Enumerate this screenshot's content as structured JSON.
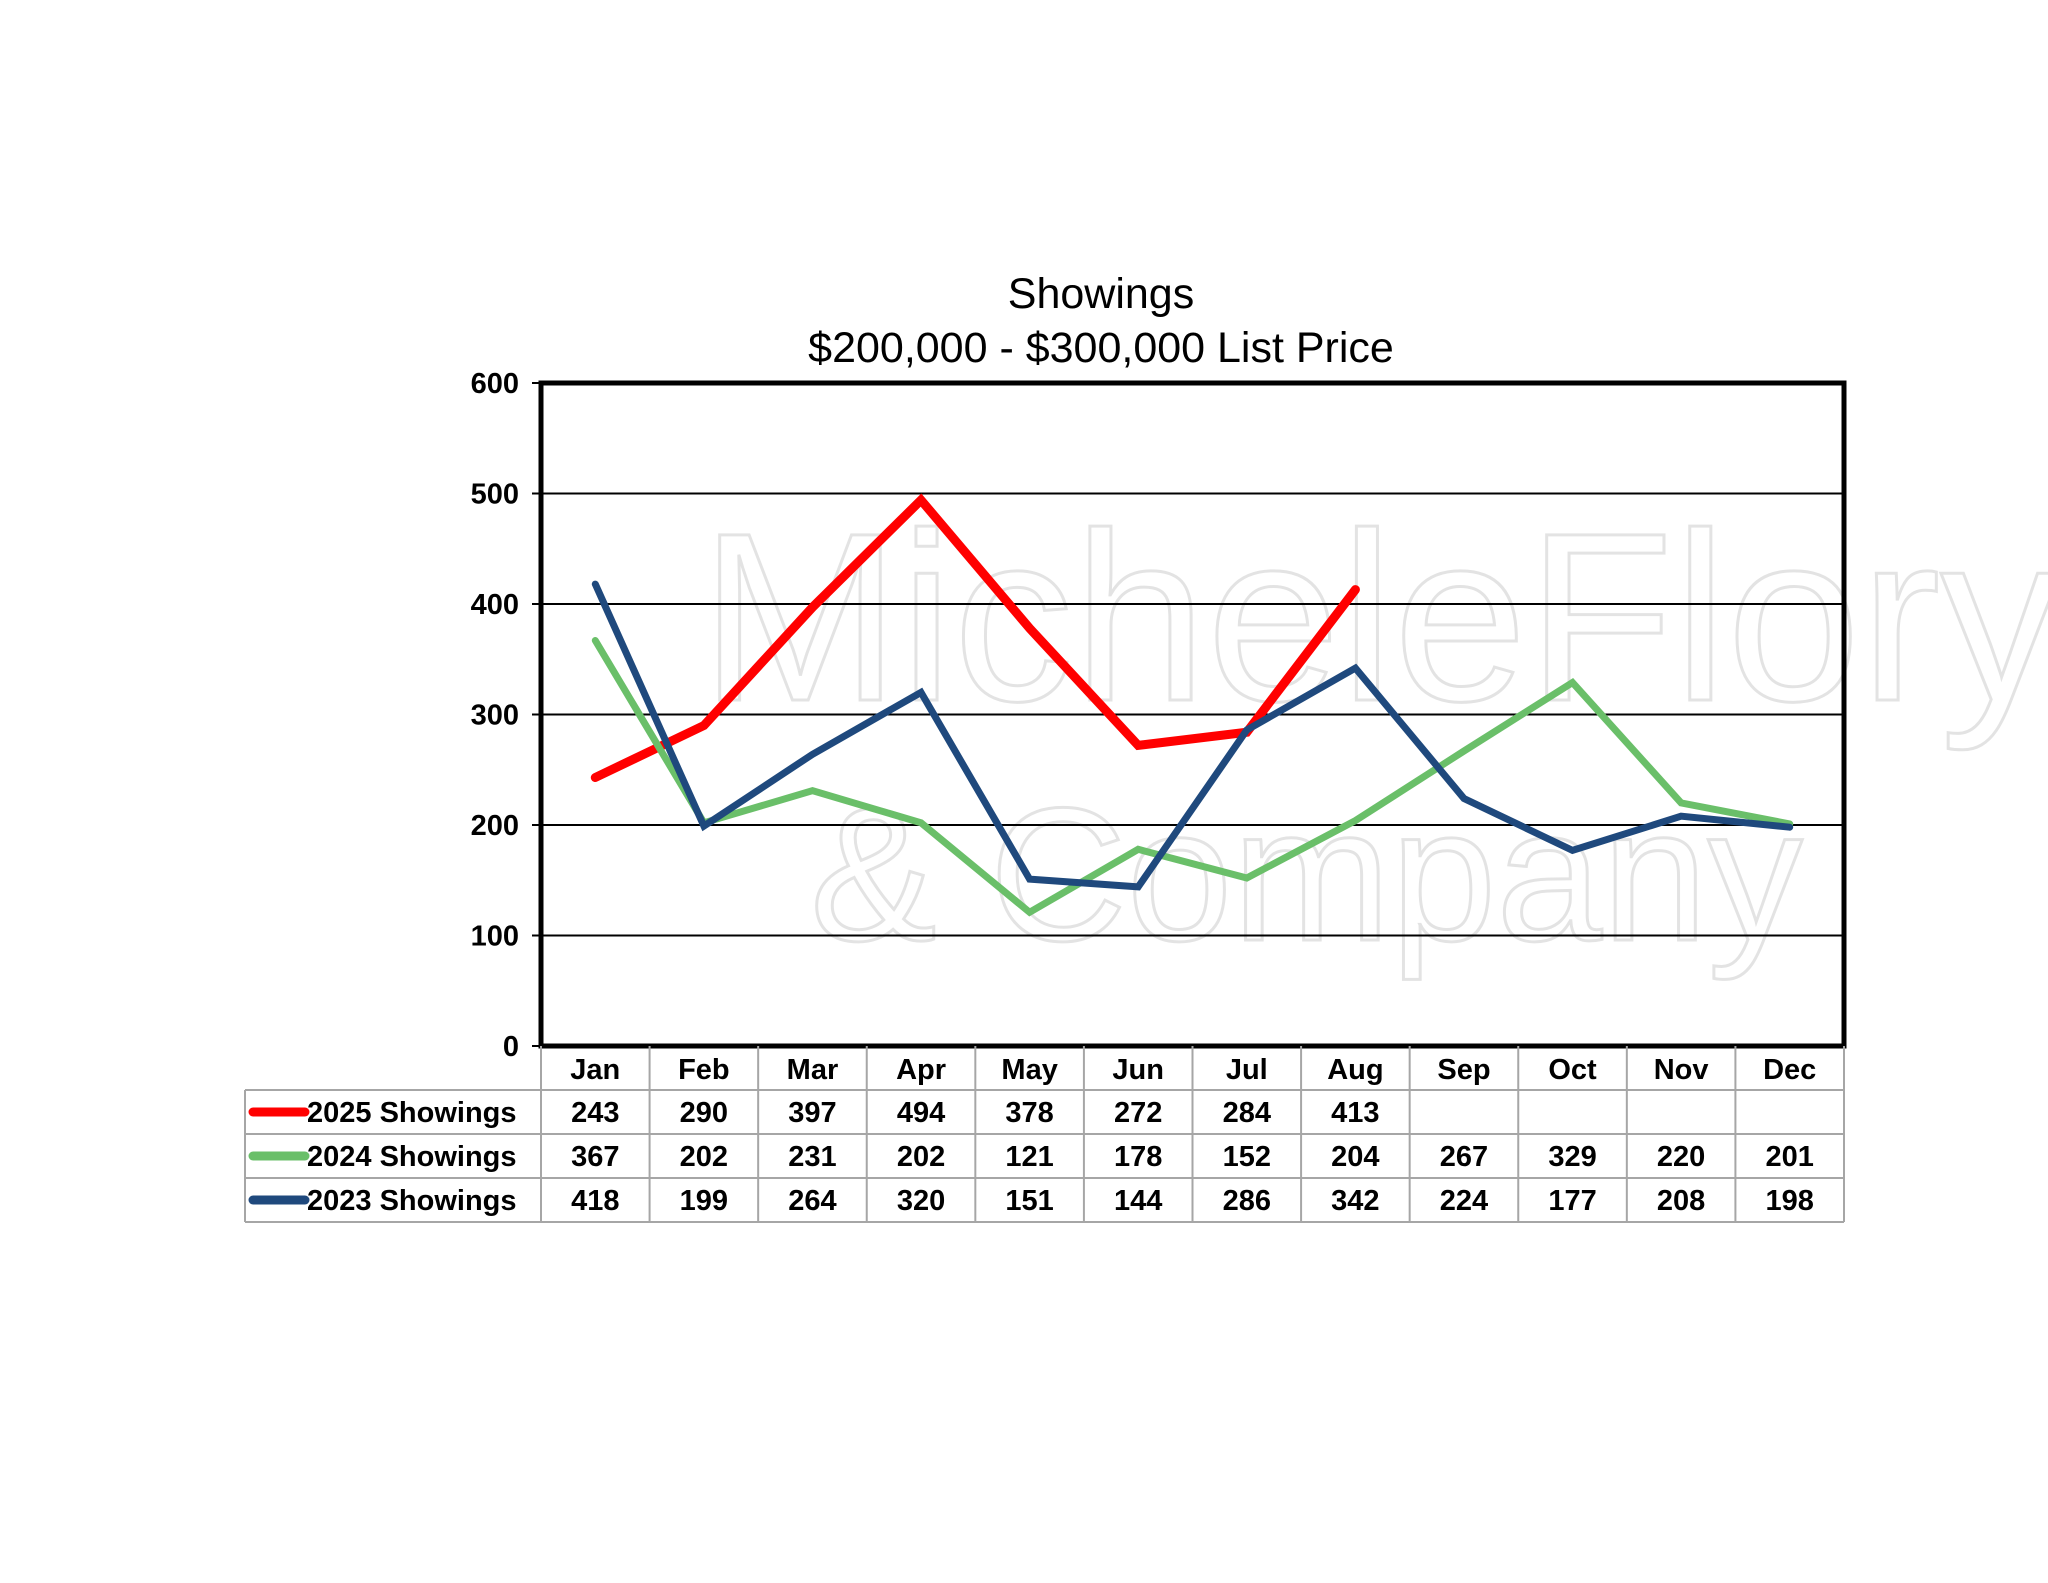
{
  "watermark": {
    "line1": "MicheleFlory",
    "line2": "& Company"
  },
  "colors": {
    "background": "#ffffff",
    "gridline": "#000000",
    "table_border": "#a6a6a6",
    "watermark": "#e3e3e3"
  },
  "chart_data": {
    "type": "line",
    "title": "Showings",
    "subtitle": "$200,000 - $300,000 List Price",
    "xlabel": "",
    "ylabel": "",
    "ylim": [
      0,
      600
    ],
    "yticks": [
      0,
      100,
      200,
      300,
      400,
      500,
      600
    ],
    "grid": true,
    "legend": "data-table-left",
    "categories": [
      "Jan",
      "Feb",
      "Mar",
      "Apr",
      "May",
      "Jun",
      "Jul",
      "Aug",
      "Sep",
      "Oct",
      "Nov",
      "Dec"
    ],
    "series": [
      {
        "name": "2025 Showings",
        "color": "#ff0000",
        "values": [
          243,
          290,
          397,
          494,
          378,
          272,
          284,
          413,
          null,
          null,
          null,
          null
        ]
      },
      {
        "name": "2024 Showings",
        "color": "#6abf69",
        "values": [
          367,
          202,
          231,
          202,
          121,
          178,
          152,
          204,
          267,
          329,
          220,
          201
        ]
      },
      {
        "name": "2023 Showings",
        "color": "#1f497d",
        "values": [
          418,
          199,
          264,
          320,
          151,
          144,
          286,
          342,
          224,
          177,
          208,
          198
        ]
      }
    ]
  }
}
